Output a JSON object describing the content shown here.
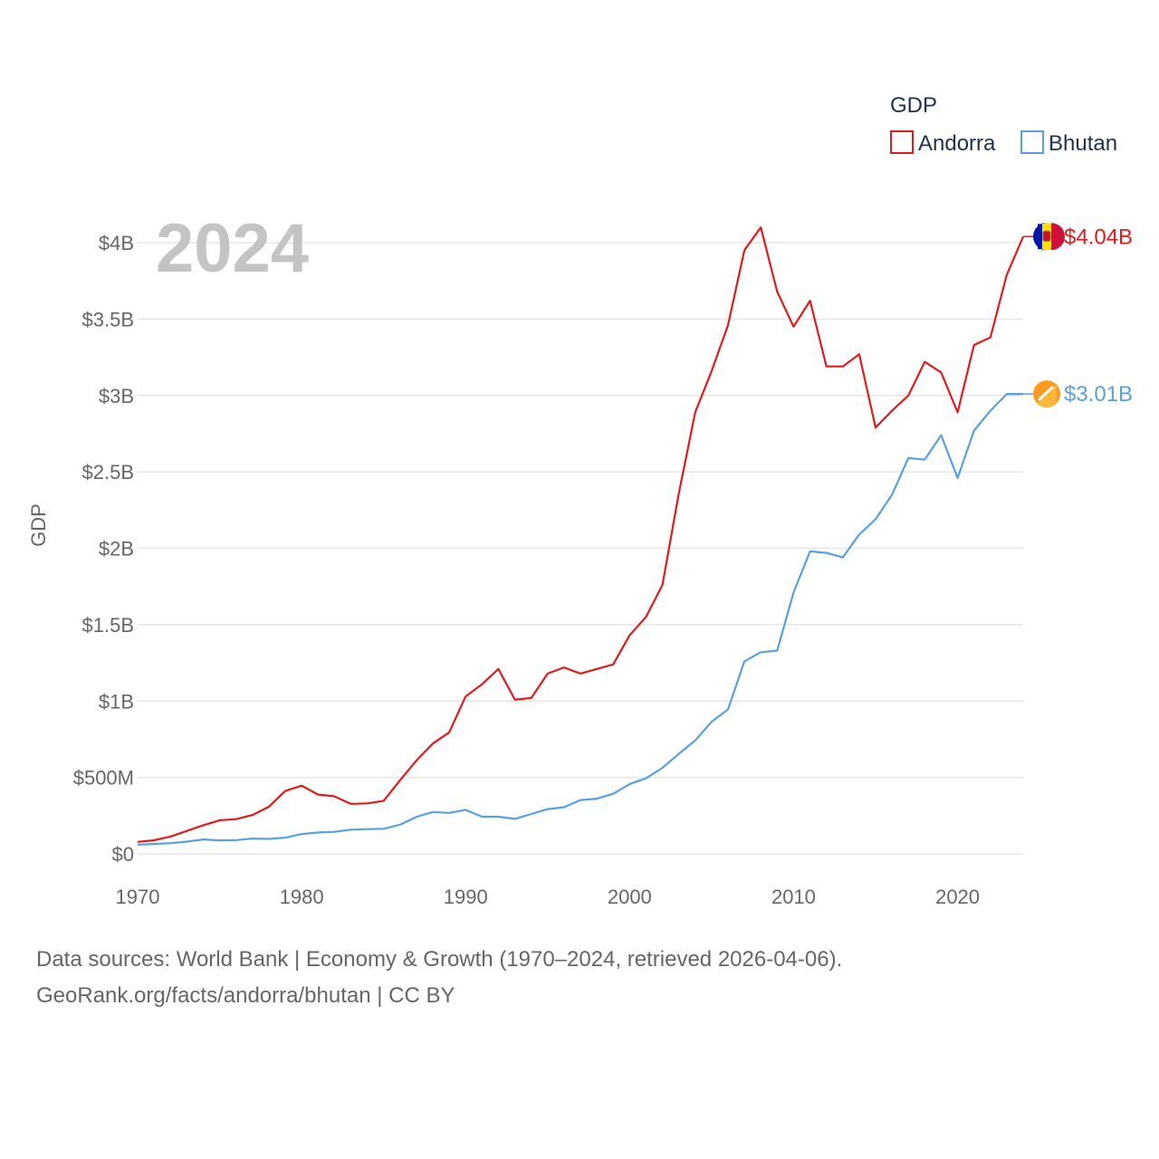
{
  "chart_data": {
    "type": "line",
    "title": "GDP",
    "year_label": "2024",
    "ylabel": "GDP",
    "xlabel": "",
    "xlim": [
      1970,
      2024
    ],
    "ylim": [
      0,
      4000000000
    ],
    "x_ticks": [
      1970,
      1980,
      1990,
      2000,
      2010,
      2020
    ],
    "y_ticks": [
      {
        "value": 0,
        "label": "$0"
      },
      {
        "value": 500000000,
        "label": "$500M"
      },
      {
        "value": 1000000000,
        "label": "$1B"
      },
      {
        "value": 1500000000,
        "label": "$1.5B"
      },
      {
        "value": 2000000000,
        "label": "$2B"
      },
      {
        "value": 2500000000,
        "label": "$2.5B"
      },
      {
        "value": 3000000000,
        "label": "$3B"
      },
      {
        "value": 3500000000,
        "label": "$3.5B"
      },
      {
        "value": 4000000000,
        "label": "$4B"
      }
    ],
    "grid": true,
    "legend": {
      "title": "GDP",
      "placement": "top-right"
    },
    "x": [
      1970,
      1971,
      1972,
      1973,
      1974,
      1975,
      1976,
      1977,
      1978,
      1979,
      1980,
      1981,
      1982,
      1983,
      1984,
      1985,
      1986,
      1987,
      1988,
      1989,
      1990,
      1991,
      1992,
      1993,
      1994,
      1995,
      1996,
      1997,
      1998,
      1999,
      2000,
      2001,
      2002,
      2003,
      2004,
      2005,
      2006,
      2007,
      2008,
      2009,
      2010,
      2011,
      2012,
      2013,
      2014,
      2015,
      2016,
      2017,
      2018,
      2019,
      2020,
      2021,
      2022,
      2023,
      2024
    ],
    "series": [
      {
        "name": "Andorra",
        "color": "#e31a1c",
        "end_label": "$4.04B",
        "flag_icon": "andorra-flag-icon",
        "values": [
          78,
          89,
          113,
          150,
          187,
          220,
          227,
          254,
          308,
          411,
          446,
          388,
          376,
          327,
          330,
          347,
          482,
          611,
          722,
          795,
          1030,
          1110,
          1210,
          1010,
          1020,
          1180,
          1220,
          1180,
          1210,
          1240,
          1430,
          1550,
          1760,
          2360,
          2890,
          3160,
          3460,
          3950,
          4100,
          3680,
          3450,
          3620,
          3190,
          3190,
          3270,
          2790,
          2900,
          3000,
          3220,
          3150,
          2890,
          3330,
          3380,
          3790,
          4040
        ]
      },
      {
        "name": "Bhutan",
        "color": "#5aa0e0",
        "end_label": "$3.01B",
        "flag_icon": "bhutan-flag-icon",
        "values": [
          60,
          65,
          70,
          80,
          94,
          88,
          90,
          100,
          98,
          106,
          129,
          140,
          144,
          158,
          162,
          164,
          191,
          242,
          274,
          268,
          288,
          243,
          243,
          229,
          261,
          293,
          305,
          352,
          361,
          393,
          457,
          494,
          563,
          655,
          742,
          865,
          945,
          1260,
          1320,
          1330,
          1710,
          1980,
          1970,
          1940,
          2090,
          2190,
          2350,
          2590,
          2580,
          2740,
          2460,
          2770,
          2900,
          3010,
          3010
        ]
      }
    ]
  },
  "source": {
    "line1": "Data sources: World Bank | Economy & Growth (1970–2024, retrieved 2026-04-06).",
    "line2": "GeoRank.org/facts/andorra/bhutan | CC BY"
  }
}
